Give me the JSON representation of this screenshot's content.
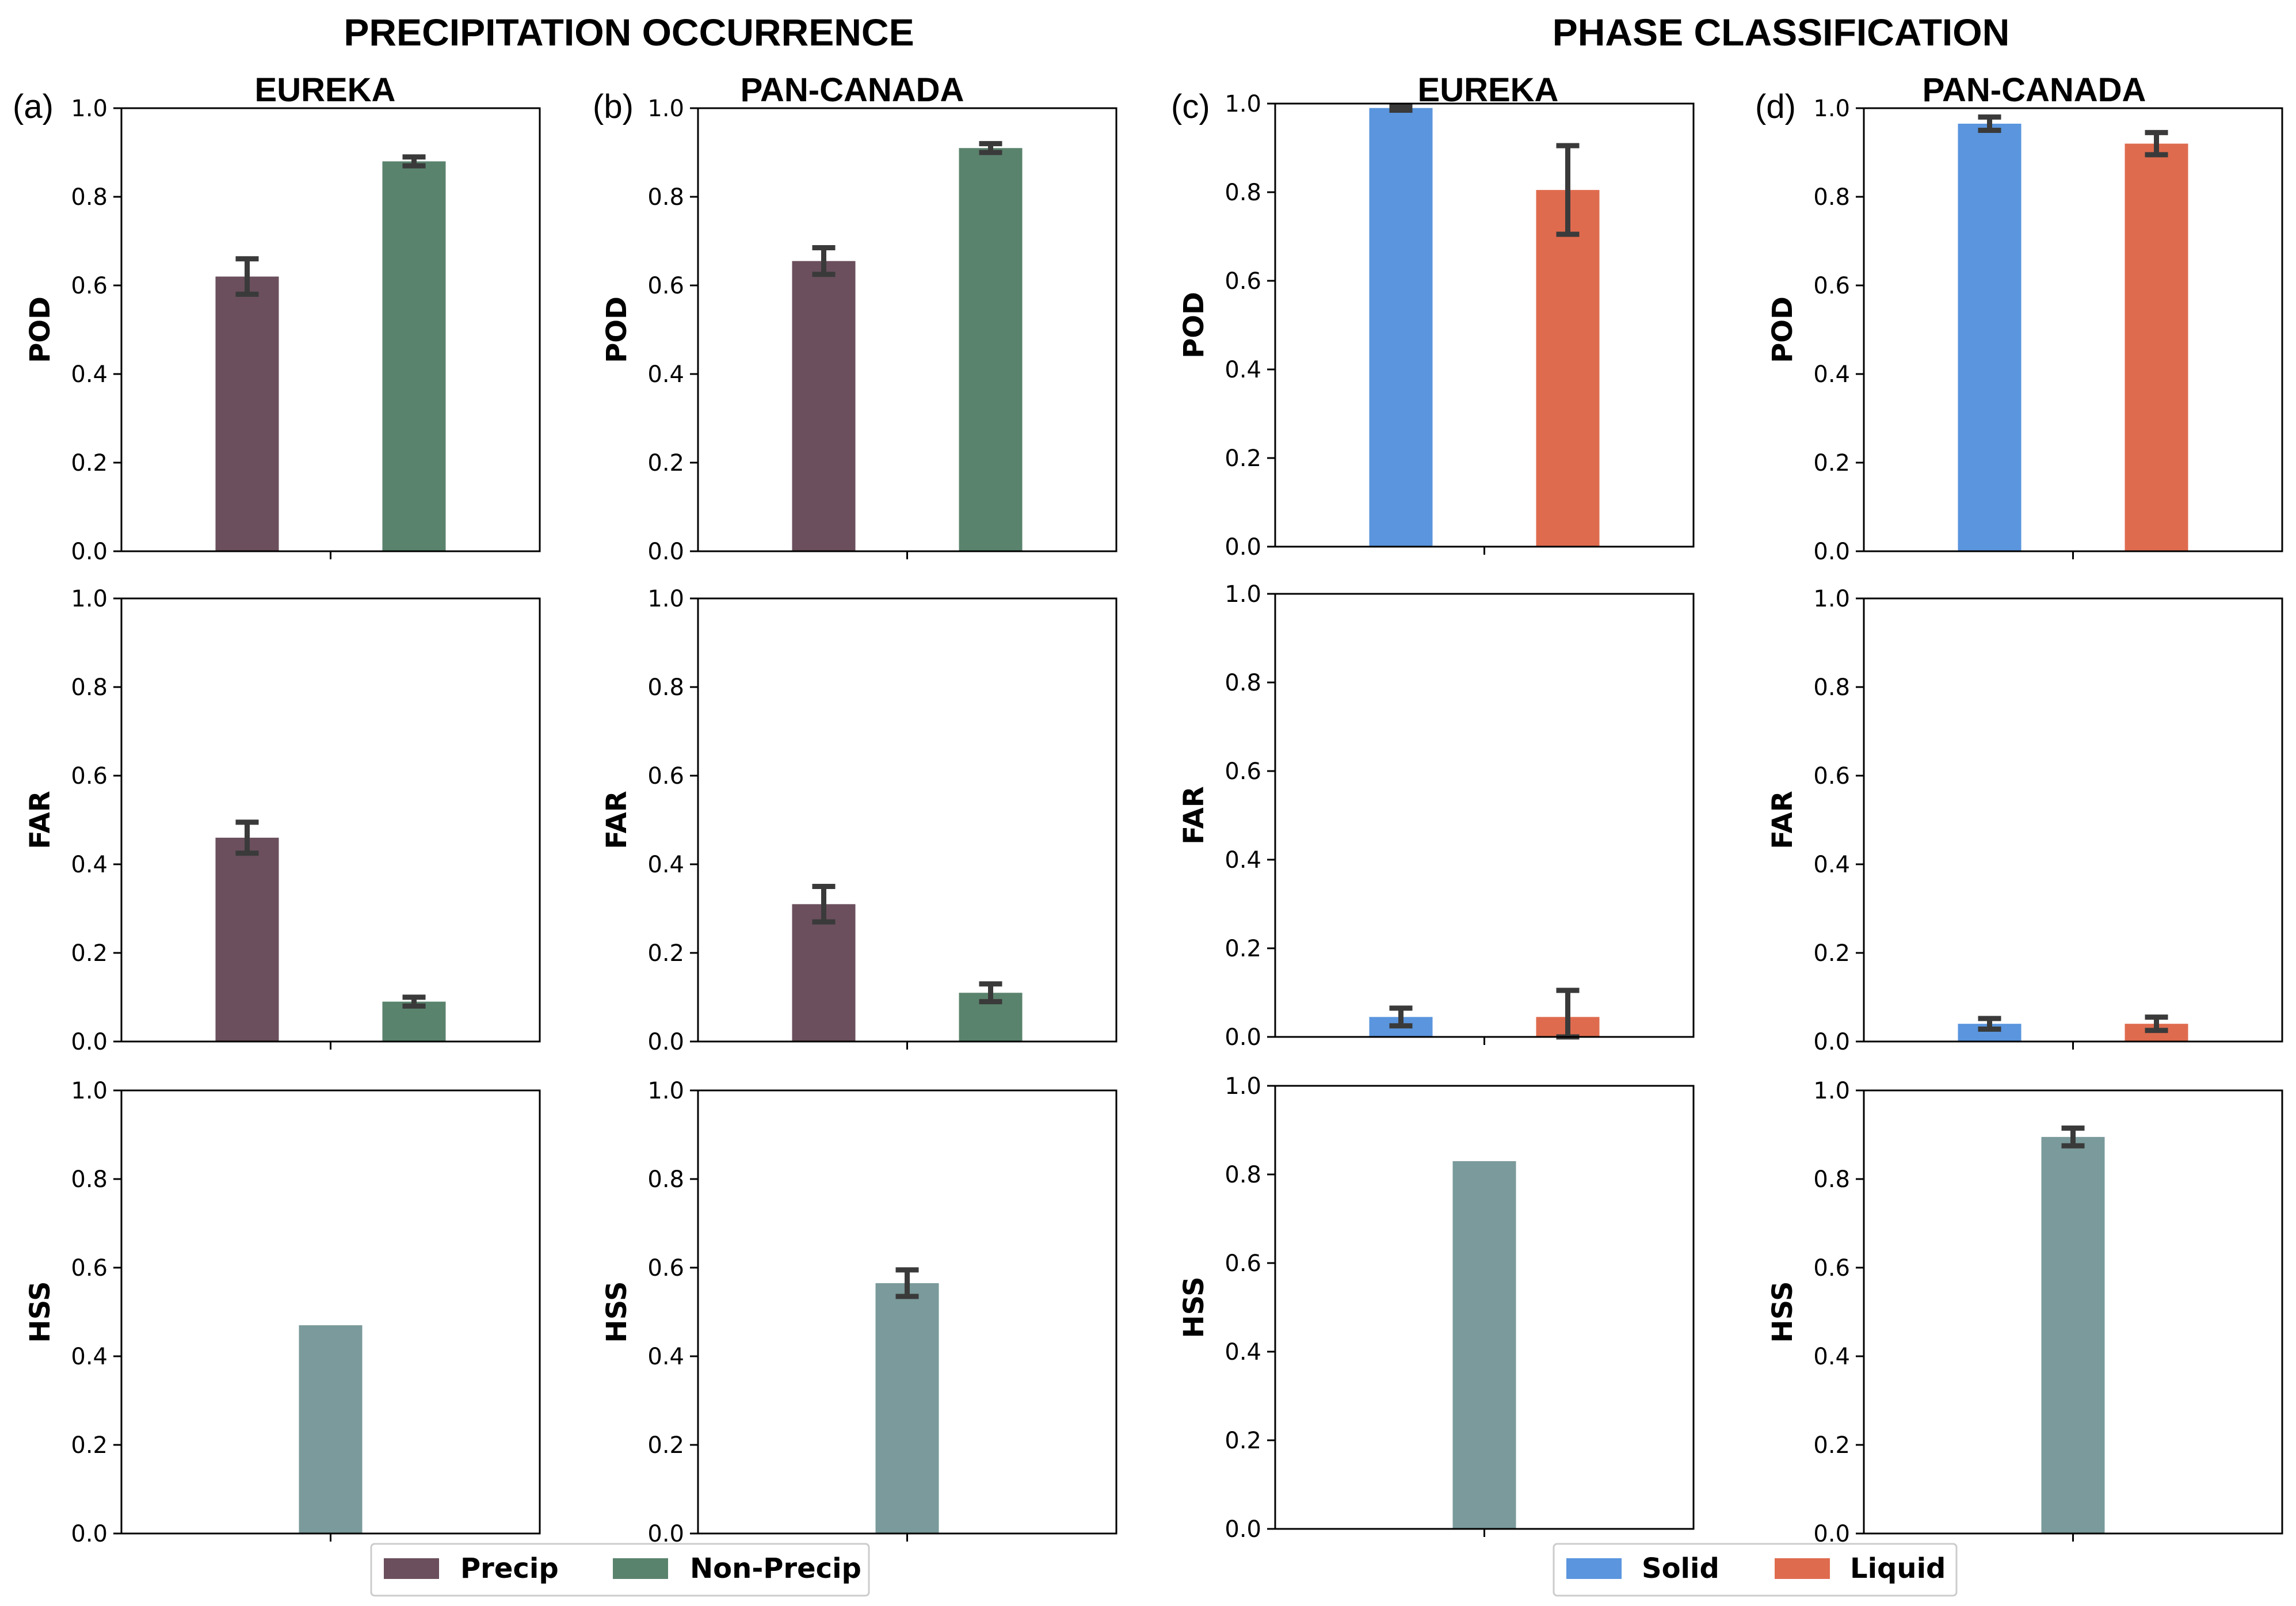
{
  "titles": {
    "left": "PRECIPITATION OCCURRENCE",
    "right": "PHASE CLASSIFICATION"
  },
  "columns": [
    {
      "label": "(a)",
      "title": "EUREKA"
    },
    {
      "label": "(b)",
      "title": "PAN-CANADA"
    },
    {
      "label": "(c)",
      "title": "EUREKA"
    },
    {
      "label": "(d)",
      "title": "PAN-CANADA"
    }
  ],
  "colors": {
    "precip": "#6b4f5c",
    "nonprecip": "#5a836d",
    "solid": "#5a95de",
    "liquid": "#df6b4e",
    "hss": "#7a9a9b",
    "errorbar": "#3a3a3a"
  },
  "legends": {
    "left": [
      {
        "label": "Precip",
        "color": "#6b4f5c"
      },
      {
        "label": "Non-Precip",
        "color": "#5a836d"
      }
    ],
    "right": [
      {
        "label": "Solid",
        "color": "#5a95de"
      },
      {
        "label": "Liquid",
        "color": "#df6b4e"
      }
    ]
  },
  "chart_data": [
    {
      "type": "bar",
      "panel": "(a)",
      "metric": "POD",
      "ylabel": "POD",
      "ylim": [
        0,
        1
      ],
      "yticks": [
        "0.0",
        "0.2",
        "0.4",
        "0.6",
        "0.8",
        "1.0"
      ],
      "series": [
        {
          "name": "Precip",
          "value": 0.62,
          "err": 0.04
        },
        {
          "name": "Non-Precip",
          "value": 0.88,
          "err": 0.01
        }
      ]
    },
    {
      "type": "bar",
      "panel": "(b)",
      "metric": "POD",
      "ylabel": "POD",
      "ylim": [
        0,
        1
      ],
      "yticks": [
        "0.0",
        "0.2",
        "0.4",
        "0.6",
        "0.8",
        "1.0"
      ],
      "series": [
        {
          "name": "Precip",
          "value": 0.655,
          "err": 0.03
        },
        {
          "name": "Non-Precip",
          "value": 0.91,
          "err": 0.01
        }
      ]
    },
    {
      "type": "bar",
      "panel": "(c)",
      "metric": "POD",
      "ylabel": "POD",
      "ylim": [
        0,
        1
      ],
      "yticks": [
        "0.0",
        "0.2",
        "0.4",
        "0.6",
        "0.8",
        "1.0"
      ],
      "series": [
        {
          "name": "Solid",
          "value": 0.99,
          "err": 0.005
        },
        {
          "name": "Liquid",
          "value": 0.805,
          "err": 0.1
        }
      ]
    },
    {
      "type": "bar",
      "panel": "(d)",
      "metric": "POD",
      "ylabel": "POD",
      "ylim": [
        0,
        1
      ],
      "yticks": [
        "0.0",
        "0.2",
        "0.4",
        "0.6",
        "0.8",
        "1.0"
      ],
      "series": [
        {
          "name": "Solid",
          "value": 0.965,
          "err": 0.015
        },
        {
          "name": "Liquid",
          "value": 0.92,
          "err": 0.025
        }
      ]
    },
    {
      "type": "bar",
      "panel": "(a)",
      "metric": "FAR",
      "ylabel": "FAR",
      "ylim": [
        0,
        1
      ],
      "yticks": [
        "0.0",
        "0.2",
        "0.4",
        "0.6",
        "0.8",
        "1.0"
      ],
      "series": [
        {
          "name": "Precip",
          "value": 0.46,
          "err": 0.035
        },
        {
          "name": "Non-Precip",
          "value": 0.09,
          "err": 0.01
        }
      ]
    },
    {
      "type": "bar",
      "panel": "(b)",
      "metric": "FAR",
      "ylabel": "FAR",
      "ylim": [
        0,
        1
      ],
      "yticks": [
        "0.0",
        "0.2",
        "0.4",
        "0.6",
        "0.8",
        "1.0"
      ],
      "series": [
        {
          "name": "Precip",
          "value": 0.31,
          "err": 0.04
        },
        {
          "name": "Non-Precip",
          "value": 0.11,
          "err": 0.02
        }
      ]
    },
    {
      "type": "bar",
      "panel": "(c)",
      "metric": "FAR",
      "ylabel": "FAR",
      "ylim": [
        0,
        1
      ],
      "yticks": [
        "0.0",
        "0.2",
        "0.4",
        "0.6",
        "0.8",
        "1.0"
      ],
      "series": [
        {
          "name": "Solid",
          "value": 0.045,
          "err": 0.02
        },
        {
          "name": "Liquid",
          "value": 0.045,
          "err": 0.06
        }
      ]
    },
    {
      "type": "bar",
      "panel": "(d)",
      "metric": "FAR",
      "ylabel": "FAR",
      "ylim": [
        0,
        1
      ],
      "yticks": [
        "0.0",
        "0.2",
        "0.4",
        "0.6",
        "0.8",
        "1.0"
      ],
      "series": [
        {
          "name": "Solid",
          "value": 0.04,
          "err": 0.012
        },
        {
          "name": "Liquid",
          "value": 0.04,
          "err": 0.015
        }
      ]
    },
    {
      "type": "bar",
      "panel": "(a)",
      "metric": "HSS",
      "ylabel": "HSS",
      "ylim": [
        0,
        1
      ],
      "yticks": [
        "0.0",
        "0.2",
        "0.4",
        "0.6",
        "0.8",
        "1.0"
      ],
      "series": [
        {
          "name": "HSS",
          "value": 0.47,
          "err": 0
        }
      ]
    },
    {
      "type": "bar",
      "panel": "(b)",
      "metric": "HSS",
      "ylabel": "HSS",
      "ylim": [
        0,
        1
      ],
      "yticks": [
        "0.0",
        "0.2",
        "0.4",
        "0.6",
        "0.8",
        "1.0"
      ],
      "series": [
        {
          "name": "HSS",
          "value": 0.565,
          "err": 0.03
        }
      ]
    },
    {
      "type": "bar",
      "panel": "(c)",
      "metric": "HSS",
      "ylabel": "HSS",
      "ylim": [
        0,
        1
      ],
      "yticks": [
        "0.0",
        "0.2",
        "0.4",
        "0.6",
        "0.8",
        "1.0"
      ],
      "series": [
        {
          "name": "HSS",
          "value": 0.83,
          "err": 0
        }
      ]
    },
    {
      "type": "bar",
      "panel": "(d)",
      "metric": "HSS",
      "ylabel": "HSS",
      "ylim": [
        0,
        1
      ],
      "yticks": [
        "0.0",
        "0.2",
        "0.4",
        "0.6",
        "0.8",
        "1.0"
      ],
      "series": [
        {
          "name": "HSS",
          "value": 0.895,
          "err": 0.02
        }
      ]
    }
  ]
}
